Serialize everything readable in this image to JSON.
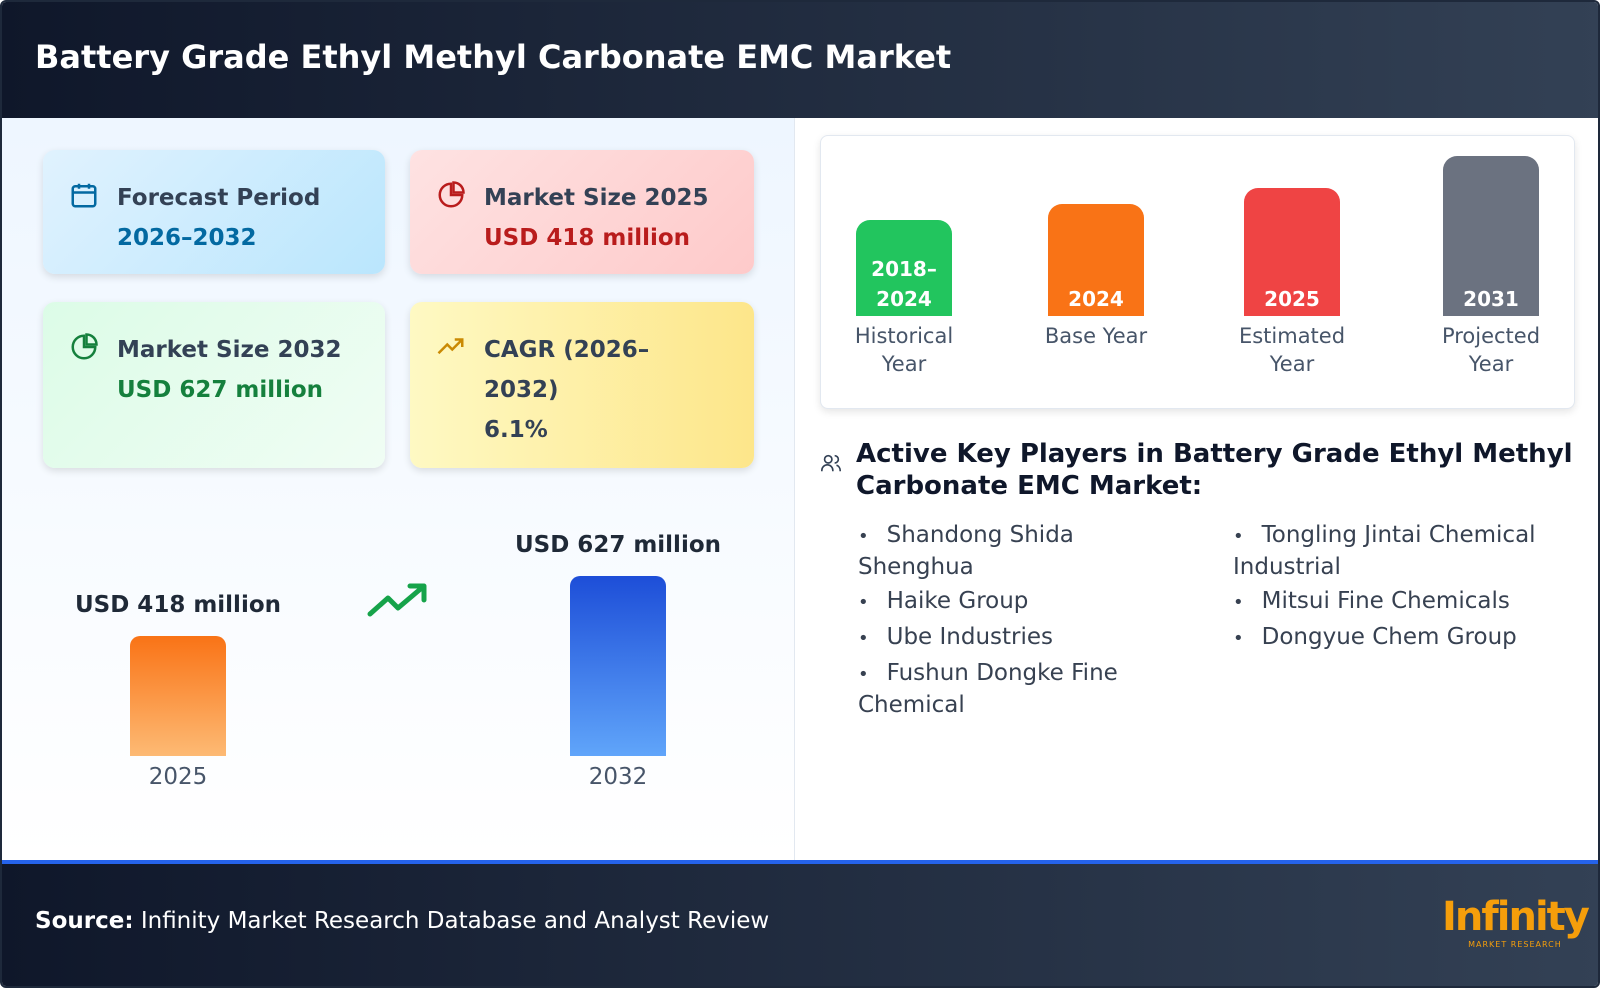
{
  "header": {
    "title": "Battery Grade Ethyl Methyl Carbonate EMC Market"
  },
  "cards": [
    {
      "label": "Forecast Period",
      "value": "2026–2032"
    },
    {
      "label": "Market Size 2025",
      "value": "USD 418 million"
    },
    {
      "label": "Market Size 2032",
      "value": "USD 627 million"
    },
    {
      "label": "CAGR (2026–2032)",
      "value": "6.1%"
    }
  ],
  "comparison": {
    "categories": [
      "2025",
      "2032"
    ],
    "values": [
      418,
      627
    ],
    "value_labels": [
      "USD 418 million",
      "USD 627 million"
    ]
  },
  "timeline": [
    {
      "year": "2018–2024",
      "label": "Historical Year"
    },
    {
      "year": "2024",
      "label": "Base Year"
    },
    {
      "year": "2025",
      "label": "Estimated Year"
    },
    {
      "year": "2031",
      "label": "Projected Year"
    }
  ],
  "players": {
    "title": "Active Key Players in Battery Grade Ethyl Methyl Carbonate EMC Market:",
    "items": [
      "Shandong Shida Shenghua",
      "Haike Group",
      "Ube Industries",
      "Fushun Dongke Fine Chemical",
      "Tongling Jintai Chemical Industrial",
      "Mitsui Fine Chemicals",
      "Dongyue Chem Group"
    ]
  },
  "footer": {
    "source_label": "Source:",
    "source": "Infinity Market Research Database and Analyst Review",
    "logo": "Infinity",
    "logo_sub": "MARKET RESEARCH"
  }
}
